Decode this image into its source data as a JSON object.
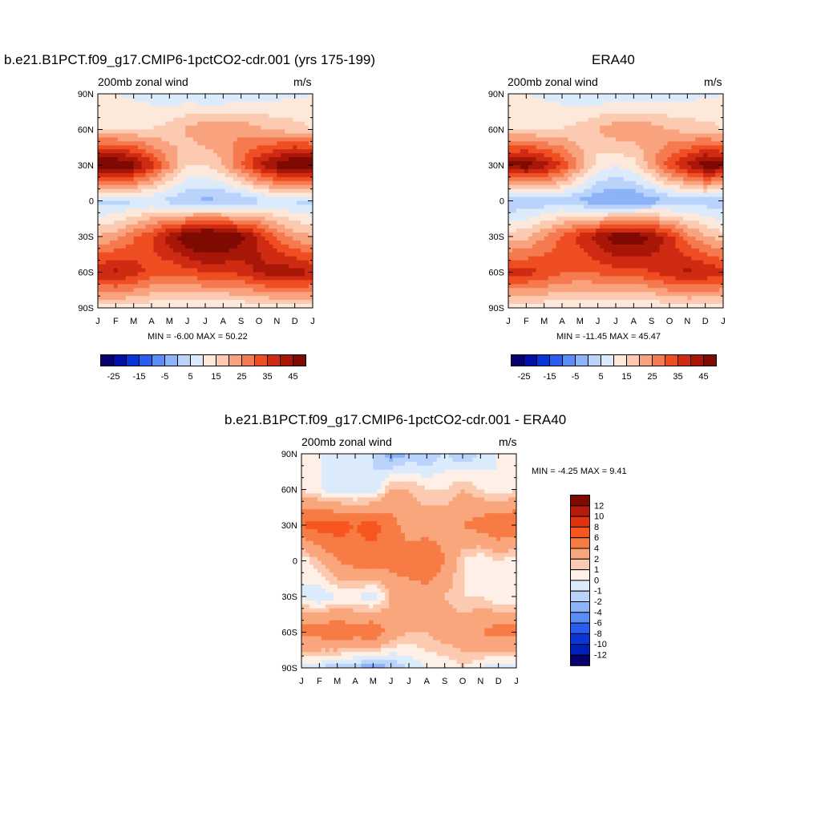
{
  "panels": [
    {
      "title": "b.e21.B1PCT.f09_g17.CMIP6-1pctCO2-cdr.001 (yrs 175-199)",
      "left_string": "200mb zonal wind",
      "right_string": "m/s",
      "stats": "MIN =  -6.00 MAX =  50.22"
    },
    {
      "title": "ERA40",
      "left_string": "200mb zonal wind",
      "right_string": "m/s",
      "stats": "MIN = -11.45 MAX =  45.47"
    },
    {
      "title": "b.e21.B1PCT.f09_g17.CMIP6-1pctCO2-cdr.001 - ERA40",
      "left_string": "200mb zonal wind",
      "right_string": "m/s",
      "stats": "MIN =  -4.25 MAX =   9.41"
    }
  ],
  "x_ticks": [
    "J",
    "F",
    "M",
    "A",
    "M",
    "J",
    "J",
    "A",
    "S",
    "O",
    "N",
    "D",
    "J"
  ],
  "y_ticks": [
    "90N",
    "60N",
    "30N",
    "0",
    "30S",
    "60S",
    "90S"
  ],
  "colorbar_top": {
    "labels": [
      "-25",
      "-15",
      "-5",
      "5",
      "15",
      "25",
      "35",
      "45"
    ],
    "colors": [
      "#08006e",
      "#0010a8",
      "#0836d8",
      "#2a5ef0",
      "#5b8ef5",
      "#8cb2f7",
      "#b9d3fb",
      "#dcebfc",
      "#fde9dc",
      "#fccab0",
      "#f9a37e",
      "#f67a50",
      "#ef4d22",
      "#cf2a12",
      "#a81608",
      "#7e0a02"
    ]
  },
  "colorbar_diff": {
    "labels": [
      "12",
      "10",
      "8",
      "6",
      "4",
      "2",
      "1",
      "0",
      "-1",
      "-2",
      "-4",
      "-6",
      "-8",
      "-10",
      "-12"
    ],
    "colors": [
      "#7e0a02",
      "#b81b0a",
      "#e2330f",
      "#f7571f",
      "#f77b45",
      "#f9a67c",
      "#fccab0",
      "#fef0e6",
      "#dcebfc",
      "#b9d3fb",
      "#8cb2f7",
      "#5b8ef5",
      "#2a5ef0",
      "#0836d8",
      "#0020b8",
      "#08006e"
    ]
  },
  "chart_data": [
    {
      "type": "heatmap",
      "title": "b.e21.B1PCT.f09_g17.CMIP6-1pctCO2-cdr.001 (yrs 175-199)",
      "subtitle": "200mb zonal wind",
      "units": "m/s",
      "x": [
        "J",
        "F",
        "M",
        "A",
        "M",
        "J",
        "J",
        "A",
        "S",
        "O",
        "N",
        "D",
        "J"
      ],
      "y": [
        "90N",
        "60N",
        "30N",
        "0",
        "30S",
        "60S",
        "90S"
      ],
      "min": -6.0,
      "max": 50.22,
      "values": [
        [
          5,
          5,
          4,
          3,
          2,
          1,
          -1,
          -1,
          1,
          2,
          3,
          4,
          5
        ],
        [
          10,
          10,
          10,
          10,
          12,
          16,
          20,
          20,
          19,
          16,
          14,
          12,
          10
        ],
        [
          48,
          47,
          42,
          32,
          20,
          10,
          10,
          15,
          25,
          35,
          42,
          48,
          48
        ],
        [
          -2,
          -2,
          -1,
          0,
          -2,
          -5,
          -6,
          -6,
          -5,
          -2,
          0,
          -1,
          -2
        ],
        [
          15,
          18,
          24,
          30,
          38,
          45,
          50,
          48,
          42,
          34,
          24,
          18,
          15
        ],
        [
          35,
          36,
          33,
          28,
          26,
          28,
          30,
          30,
          32,
          36,
          38,
          38,
          35
        ],
        [
          8,
          8,
          7,
          6,
          6,
          5,
          5,
          5,
          5,
          6,
          7,
          8,
          8
        ]
      ]
    },
    {
      "type": "heatmap",
      "title": "ERA40",
      "subtitle": "200mb zonal wind",
      "units": "m/s",
      "x": [
        "J",
        "F",
        "M",
        "A",
        "M",
        "J",
        "J",
        "A",
        "S",
        "O",
        "N",
        "D",
        "J"
      ],
      "y": [
        "90N",
        "60N",
        "30N",
        "0",
        "30S",
        "60S",
        "90S"
      ],
      "min": -11.45,
      "max": 45.47,
      "values": [
        [
          5,
          5,
          4,
          3,
          2,
          1,
          0,
          0,
          1,
          2,
          3,
          4,
          5
        ],
        [
          10,
          10,
          10,
          10,
          12,
          15,
          19,
          19,
          18,
          15,
          13,
          12,
          10
        ],
        [
          42,
          43,
          38,
          30,
          18,
          8,
          5,
          8,
          18,
          28,
          36,
          44,
          42
        ],
        [
          -5,
          -5,
          -4,
          -3,
          -6,
          -9,
          -11,
          -10,
          -8,
          -5,
          -3,
          -3,
          -5
        ],
        [
          12,
          14,
          20,
          26,
          32,
          38,
          44,
          44,
          40,
          32,
          22,
          16,
          12
        ],
        [
          32,
          32,
          30,
          26,
          25,
          26,
          28,
          28,
          30,
          34,
          36,
          35,
          32
        ],
        [
          7,
          7,
          6,
          6,
          5,
          5,
          5,
          5,
          5,
          6,
          7,
          7,
          7
        ]
      ]
    },
    {
      "type": "heatmap",
      "title": "b.e21.B1PCT.f09_g17.CMIP6-1pctCO2-cdr.001 - ERA40",
      "subtitle": "200mb zonal wind",
      "units": "m/s",
      "x": [
        "J",
        "F",
        "M",
        "A",
        "M",
        "J",
        "J",
        "A",
        "S",
        "O",
        "N",
        "D",
        "J"
      ],
      "y": [
        "90N",
        "60N",
        "30N",
        "0",
        "30S",
        "60S",
        "90S"
      ],
      "min": -4.25,
      "max": 9.41,
      "values": [
        [
          0,
          0,
          0,
          -1,
          -1,
          -3,
          -2,
          -2,
          -1,
          -2,
          -1,
          0,
          0
        ],
        [
          1,
          0,
          -1,
          -1,
          -1,
          2,
          2,
          1,
          1,
          2,
          1,
          0,
          1
        ],
        [
          6,
          7,
          7,
          6,
          7,
          5,
          3,
          3,
          3,
          4,
          5,
          6,
          6
        ],
        [
          0,
          2,
          4,
          5,
          5,
          5,
          5,
          6,
          4,
          1,
          0,
          1,
          0
        ],
        [
          0,
          -1,
          0,
          0,
          -1,
          2,
          3,
          3,
          2,
          1,
          1,
          0,
          0
        ],
        [
          5,
          5,
          6,
          5,
          6,
          3,
          2,
          2,
          3,
          3,
          4,
          5,
          5
        ],
        [
          -1,
          -1,
          -2,
          -2,
          -3,
          -2,
          -1,
          0,
          0,
          1,
          0,
          -1,
          -1
        ]
      ]
    }
  ]
}
